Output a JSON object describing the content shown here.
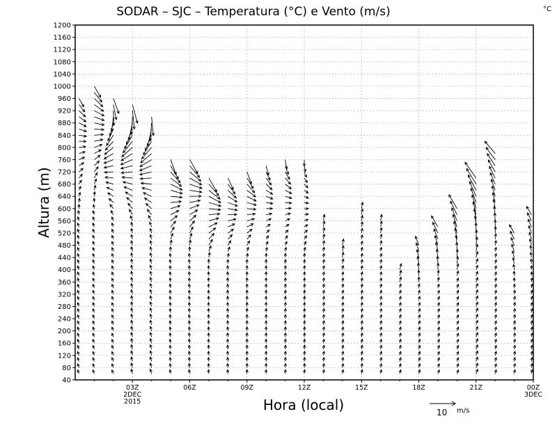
{
  "chart_data": {
    "type": "wind-barb",
    "title": "SODAR – SJC – Temperatura (°C) e Vento (m/s)",
    "colorbar_unit": "°C",
    "ylabel": "Altura (m)",
    "xlabel": "Hora (local)",
    "ylim": [
      40,
      1200
    ],
    "y_ticks": [
      40,
      80,
      120,
      160,
      200,
      240,
      280,
      320,
      360,
      400,
      440,
      480,
      520,
      560,
      600,
      640,
      680,
      720,
      760,
      800,
      840,
      880,
      920,
      960,
      1000,
      1040,
      1080,
      1120,
      1160,
      1200
    ],
    "xlim_hours": [
      0,
      24
    ],
    "x_ticks": [
      {
        "hour": 3,
        "lines": [
          "03Z",
          "2DEC",
          "2015"
        ]
      },
      {
        "hour": 6,
        "lines": [
          "06Z"
        ]
      },
      {
        "hour": 9,
        "lines": [
          "09Z"
        ]
      },
      {
        "hour": 12,
        "lines": [
          "12Z"
        ]
      },
      {
        "hour": 15,
        "lines": [
          "15Z"
        ]
      },
      {
        "hour": 18,
        "lines": [
          "18Z"
        ]
      },
      {
        "hour": 21,
        "lines": [
          "21Z"
        ]
      },
      {
        "hour": 24,
        "lines": [
          "00Z",
          "3DEC"
        ]
      }
    ],
    "grid": true,
    "vector_scale": {
      "value": 10,
      "unit": "m/s"
    },
    "profiles": [
      {
        "hour": 0.2,
        "top": 960,
        "low_dir": 340,
        "high_dir": 150,
        "speed": 3
      },
      {
        "hour": 1.0,
        "top": 1000,
        "low_dir": 340,
        "high_dir": 150,
        "speed": 4
      },
      {
        "hour": 2.0,
        "top": 960,
        "low_dir": 340,
        "high_dir": 160,
        "speed": 5
      },
      {
        "hour": 3.0,
        "top": 940,
        "low_dir": 345,
        "high_dir": 165,
        "speed": 6
      },
      {
        "hour": 4.0,
        "top": 910,
        "low_dir": 345,
        "high_dir": 170,
        "speed": 6
      },
      {
        "hour": 5.0,
        "top": 760,
        "low_dir": 350,
        "high_dir": 160,
        "speed": 5
      },
      {
        "hour": 6.0,
        "top": 760,
        "low_dir": 350,
        "high_dir": 150,
        "speed": 5
      },
      {
        "hour": 7.0,
        "top": 700,
        "low_dir": 355,
        "high_dir": 150,
        "speed": 5
      },
      {
        "hour": 8.0,
        "top": 700,
        "low_dir": 355,
        "high_dir": 155,
        "speed": 4
      },
      {
        "hour": 9.0,
        "top": 720,
        "low_dir": 0,
        "high_dir": 160,
        "speed": 4
      },
      {
        "hour": 10.0,
        "top": 740,
        "low_dir": 0,
        "high_dir": 165,
        "speed": 3
      },
      {
        "hour": 11.0,
        "top": 760,
        "low_dir": 5,
        "high_dir": 170,
        "speed": 3
      },
      {
        "hour": 12.0,
        "top": 760,
        "low_dir": 5,
        "high_dir": 180,
        "speed": 2
      },
      {
        "hour": 13.0,
        "top": 560,
        "low_dir": 10,
        "high_dir": 10,
        "speed": 2
      },
      {
        "hour": 14.0,
        "top": 480,
        "low_dir": 10,
        "high_dir": 10,
        "speed": 2
      },
      {
        "hour": 15.0,
        "top": 600,
        "low_dir": 10,
        "high_dir": 10,
        "speed": 2
      },
      {
        "hour": 16.0,
        "top": 560,
        "low_dir": 10,
        "high_dir": 10,
        "speed": 2
      },
      {
        "hour": 17.0,
        "top": 400,
        "low_dir": 15,
        "high_dir": 15,
        "speed": 2
      },
      {
        "hour": 18.0,
        "top": 480,
        "low_dir": 15,
        "high_dir": 340,
        "speed": 3
      },
      {
        "hour": 19.0,
        "top": 540,
        "low_dir": 20,
        "high_dir": 330,
        "speed": 4
      },
      {
        "hour": 20.0,
        "top": 600,
        "low_dir": 20,
        "high_dir": 330,
        "speed": 5
      },
      {
        "hour": 21.0,
        "top": 700,
        "low_dir": 20,
        "high_dir": 325,
        "speed": 6
      },
      {
        "hour": 22.0,
        "top": 780,
        "low_dir": 15,
        "high_dir": 320,
        "speed": 5
      },
      {
        "hour": 23.0,
        "top": 520,
        "low_dir": 10,
        "high_dir": 330,
        "speed": 3
      },
      {
        "hour": 23.9,
        "top": 580,
        "low_dir": 10,
        "high_dir": 330,
        "speed": 3
      }
    ]
  },
  "colors": {
    "line": "#000000",
    "grid": "#9a9a9a",
    "background": "#ffffff"
  }
}
